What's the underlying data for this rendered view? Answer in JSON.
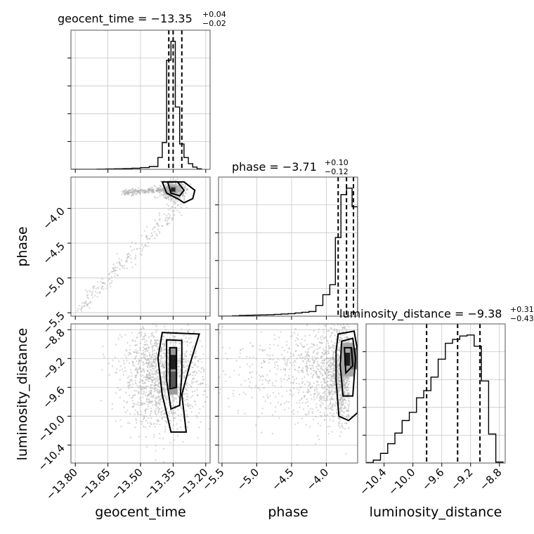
{
  "chart_data": {
    "type": "corner",
    "parameters": [
      {
        "name": "geocent_time",
        "title": {
          "prefix": "geocent_time = ",
          "median": "−13.35",
          "plus": "+0.04",
          "minus": "−0.02"
        },
        "range": [
          -13.82,
          -13.18
        ],
        "ticks": [
          -13.8,
          -13.65,
          -13.5,
          -13.35,
          -13.2
        ],
        "tick_labels": [
          "−13.80",
          "−13.65",
          "−13.50",
          "−13.35",
          "−13.20"
        ],
        "quantiles": [
          -13.37,
          -13.35,
          -13.31
        ],
        "histogram": {
          "bin_edges": [
            -13.82,
            -13.78,
            -13.74,
            -13.7,
            -13.66,
            -13.62,
            -13.58,
            -13.54,
            -13.5,
            -13.46,
            -13.42,
            -13.4,
            -13.38,
            -13.36,
            -13.34,
            -13.32,
            -13.3,
            -13.28,
            -13.26,
            -13.24,
            -13.22
          ],
          "counts": [
            0,
            0,
            2,
            6,
            14,
            20,
            26,
            40,
            60,
            100,
            420,
            950,
            3870,
            4540,
            2210,
            900,
            420,
            200,
            80,
            20
          ]
        }
      },
      {
        "name": "phase",
        "title": {
          "prefix": "phase = ",
          "median": "−3.71",
          "plus": "+0.10",
          "minus": "−0.12"
        },
        "range": [
          -5.55,
          -3.55
        ],
        "ticks": [
          -5.5,
          -5.0,
          -4.5,
          -4.0
        ],
        "tick_labels": [
          "−5.5",
          "−5.0",
          "−4.5",
          "−4.0"
        ],
        "quantiles": [
          -3.83,
          -3.71,
          -3.61
        ],
        "histogram": {
          "bin_edges": [
            -5.55,
            -5.45,
            -5.35,
            -5.25,
            -5.15,
            -5.05,
            -4.95,
            -4.85,
            -4.75,
            -4.65,
            -4.55,
            -4.45,
            -4.35,
            -4.25,
            -4.15,
            -4.05,
            -3.95,
            -3.87,
            -3.79,
            -3.71,
            -3.63,
            -3.55
          ],
          "counts": [
            0,
            0,
            10,
            20,
            25,
            30,
            35,
            40,
            50,
            60,
            70,
            90,
            110,
            130,
            300,
            600,
            880,
            2200,
            3400,
            3580,
            3060
          ]
        }
      },
      {
        "name": "luminosity_distance",
        "title": {
          "prefix": "luminosity_distance = ",
          "median": "−9.38",
          "plus": "+0.31",
          "minus": "−0.43"
        },
        "range": [
          -10.65,
          -8.72
        ],
        "ticks": [
          -10.4,
          -10.0,
          -9.6,
          -9.2,
          -8.8
        ],
        "tick_labels": [
          "−10.4",
          "−10.0",
          "−9.6",
          "−9.2",
          "−8.8"
        ],
        "quantiles": [
          -9.81,
          -9.38,
          -9.07
        ],
        "histogram": {
          "bin_edges": [
            -10.65,
            -10.55,
            -10.45,
            -10.35,
            -10.25,
            -10.15,
            -10.05,
            -9.95,
            -9.85,
            -9.75,
            -9.65,
            -9.55,
            -9.45,
            -9.35,
            -9.25,
            -9.15,
            -9.05,
            -8.95,
            -8.85,
            -8.75
          ],
          "counts": [
            10,
            60,
            200,
            400,
            620,
            880,
            1050,
            1350,
            1500,
            1780,
            2150,
            2480,
            2560,
            2630,
            2650,
            2420,
            1700,
            600,
            20
          ]
        }
      }
    ],
    "axis_labels": {
      "x": [
        "geocent_time",
        "phase",
        "luminosity_distance"
      ],
      "y": [
        "phase",
        "luminosity_distance"
      ]
    },
    "contour_levels": [
      "0.5σ",
      "1σ",
      "1.5σ",
      "2σ"
    ],
    "grid": true,
    "colors": {
      "hist": "#000000",
      "contour": "#000000",
      "scatter": "#b0b0b0",
      "quantile": "#000000"
    }
  }
}
